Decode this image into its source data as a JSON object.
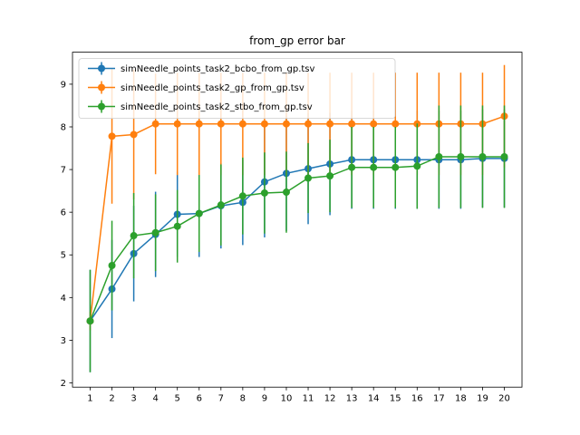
{
  "chart_data": {
    "type": "line",
    "title": "from_gp error bar",
    "xlabel": "",
    "ylabel": "",
    "xlim": [
      0.19,
      20.81
    ],
    "ylim": [
      1.9,
      9.75
    ],
    "xticks": [
      "1",
      "2",
      "3",
      "4",
      "5",
      "6",
      "7",
      "8",
      "9",
      "10",
      "11",
      "12",
      "13",
      "14",
      "15",
      "16",
      "17",
      "18",
      "19",
      "20"
    ],
    "yticks": [
      "2",
      "3",
      "4",
      "5",
      "6",
      "7",
      "8",
      "9"
    ],
    "legend_position": "upper-left",
    "grid": false,
    "x": [
      1,
      2,
      3,
      4,
      5,
      6,
      7,
      8,
      9,
      10,
      11,
      12,
      13,
      14,
      15,
      16,
      17,
      18,
      19,
      20
    ],
    "series": [
      {
        "name": "simNeedle_points_task2_bcbo_from_gp.tsv",
        "color": "#1f77b4",
        "values": [
          3.45,
          4.2,
          5.03,
          5.48,
          5.95,
          5.97,
          6.15,
          6.23,
          6.71,
          6.91,
          7.02,
          7.13,
          7.23,
          7.23,
          7.23,
          7.23,
          7.23,
          7.23,
          7.26,
          7.26
        ],
        "errors": [
          1.2,
          1.15,
          1.12,
          1.0,
          1.0,
          1.02,
          1.0,
          1.0,
          1.3,
          1.35,
          1.3,
          1.2,
          1.15,
          1.15,
          1.15,
          1.15,
          1.15,
          1.15,
          1.15,
          1.15
        ]
      },
      {
        "name": "simNeedle_points_task2_gp_from_gp.tsv",
        "color": "#ff7f0e",
        "values": [
          3.45,
          7.78,
          7.82,
          8.07,
          8.07,
          8.07,
          8.07,
          8.07,
          8.07,
          8.07,
          8.07,
          8.07,
          8.07,
          8.07,
          8.07,
          8.07,
          8.07,
          8.07,
          8.07,
          8.25
        ],
        "errors": [
          0.22,
          1.58,
          1.52,
          1.18,
          1.2,
          1.2,
          1.2,
          1.2,
          1.2,
          1.2,
          1.2,
          1.2,
          1.2,
          1.2,
          1.2,
          1.2,
          1.2,
          1.2,
          1.2,
          1.2
        ]
      },
      {
        "name": "simNeedle_points_task2_stbo_from_gp.tsv",
        "color": "#2ca02c",
        "values": [
          3.45,
          4.75,
          5.45,
          5.52,
          5.67,
          5.97,
          6.17,
          6.38,
          6.45,
          6.47,
          6.8,
          6.85,
          7.05,
          7.05,
          7.05,
          7.08,
          7.3,
          7.3,
          7.3,
          7.3
        ],
        "errors": [
          1.2,
          1.05,
          1.0,
          0.9,
          0.85,
          0.9,
          0.95,
          0.9,
          0.95,
          0.95,
          0.82,
          0.85,
          0.95,
          0.95,
          0.95,
          1.0,
          1.2,
          1.2,
          1.2,
          1.2
        ]
      }
    ]
  }
}
